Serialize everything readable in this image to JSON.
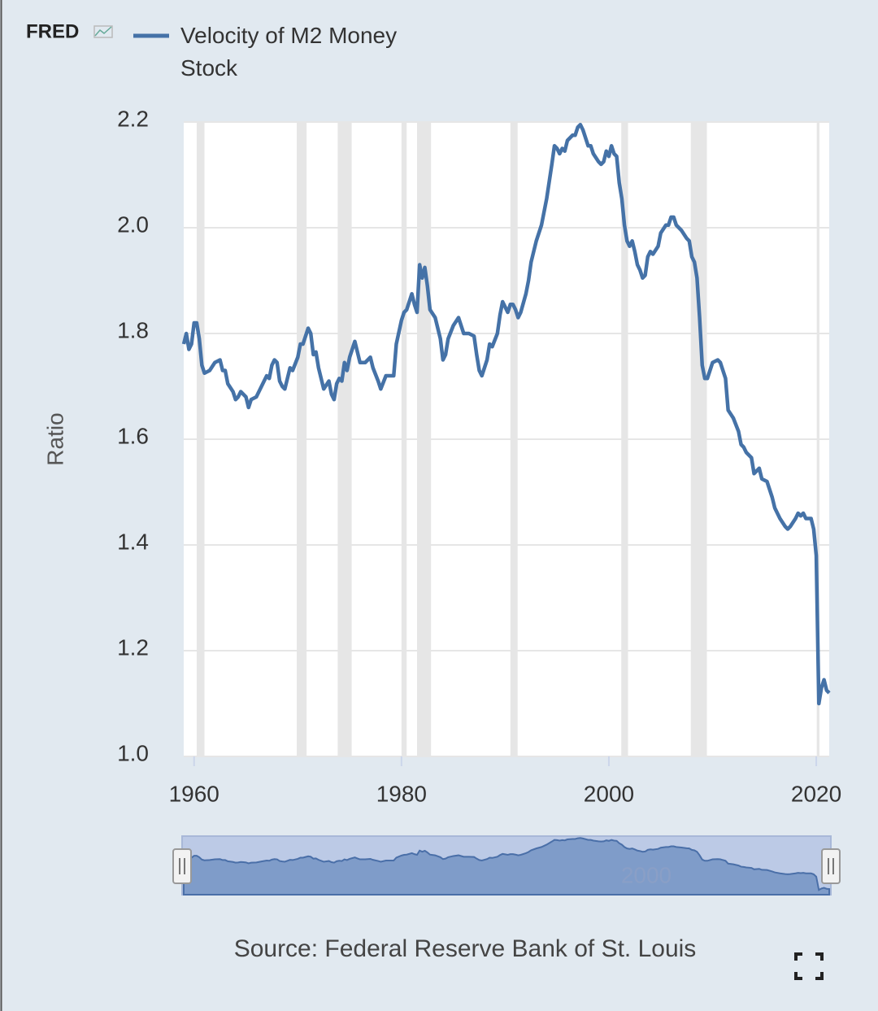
{
  "chart_data": {
    "type": "line",
    "logo": "FRED",
    "y_label": "Ratio",
    "source": "Source: Federal Reserve Bank of St. Louis",
    "navigator_label": "2000",
    "series": [
      {
        "name": "Velocity of M2 Money Stock",
        "color": "#4572a7",
        "values": [
          1.78,
          1.8,
          1.77,
          1.78,
          1.82,
          1.82,
          1.79,
          1.74,
          1.725,
          1.73,
          1.745,
          1.75,
          1.73,
          1.73,
          1.705,
          1.69,
          1.675,
          1.68,
          1.69,
          1.685,
          1.68,
          1.66,
          1.675,
          1.68,
          1.7,
          1.72,
          1.715,
          1.74,
          1.75,
          1.745,
          1.71,
          1.7,
          1.695,
          1.715,
          1.735,
          1.73,
          1.755,
          1.78,
          1.78,
          1.795,
          1.81,
          1.8,
          1.76,
          1.765,
          1.735,
          1.695,
          1.71,
          1.685,
          1.675,
          1.705,
          1.715,
          1.71,
          1.745,
          1.73,
          1.755,
          1.785,
          1.765,
          1.745,
          1.745,
          1.755,
          1.735,
          1.71,
          1.695,
          1.72,
          1.72,
          1.72,
          1.78,
          1.825,
          1.84,
          1.845,
          1.875,
          1.855,
          1.84,
          1.93,
          1.905,
          1.925,
          1.89,
          1.845,
          1.83,
          1.79,
          1.75,
          1.76,
          1.79,
          1.815,
          1.83,
          1.8,
          1.8,
          1.795,
          1.76,
          1.73,
          1.72,
          1.75,
          1.78,
          1.775,
          1.8,
          1.835,
          1.86,
          1.85,
          1.84,
          1.855,
          1.855,
          1.845,
          1.83,
          1.84,
          1.875,
          1.9,
          1.935,
          1.975,
          2.005,
          2.055,
          2.12,
          2.155,
          2.15,
          2.14,
          2.15,
          2.145,
          2.165,
          2.175,
          2.175,
          2.19,
          2.195,
          2.185,
          2.155,
          2.155,
          2.14,
          2.125,
          2.12,
          2.125,
          2.145,
          2.135,
          2.155,
          2.14,
          2.135,
          2.085,
          2.055,
          2.005,
          1.975,
          1.965,
          1.975,
          1.955,
          1.93,
          1.92,
          1.905,
          1.91,
          1.945,
          1.955,
          1.95,
          1.965,
          1.99,
          2.005,
          2.005,
          2.02,
          2.02,
          2.005,
          1.995,
          1.98,
          1.975,
          1.945,
          1.935,
          1.905,
          1.83,
          1.74,
          1.715,
          1.715,
          1.73,
          1.745,
          1.75,
          1.745,
          1.715,
          1.655,
          1.64,
          1.615,
          1.59,
          1.585,
          1.575,
          1.565,
          1.535,
          1.545,
          1.525,
          1.52,
          1.49,
          1.47,
          1.45,
          1.435,
          1.43,
          1.435,
          1.45,
          1.46,
          1.455,
          1.46,
          1.45,
          1.45,
          1.43,
          1.38,
          1.1,
          1.13,
          1.145,
          1.125,
          1.12
        ]
      }
    ],
    "x": [
      1959,
      1959.25,
      1959.5,
      1959.75,
      1960,
      1960.25,
      1960.5,
      1960.75,
      1961,
      1961.5,
      1962,
      1962.5,
      1962.75,
      1963,
      1963.25,
      1963.75,
      1964,
      1964.25,
      1964.5,
      1964.75,
      1965,
      1965.25,
      1965.5,
      1966,
      1966.5,
      1967,
      1967.25,
      1967.5,
      1967.75,
      1968,
      1968.25,
      1968.5,
      1968.75,
      1969,
      1969.25,
      1969.5,
      1970,
      1970.25,
      1970.5,
      1970.75,
      1971,
      1971.25,
      1971.5,
      1971.75,
      1972,
      1972.5,
      1973,
      1973.25,
      1973.5,
      1973.75,
      1974,
      1974.25,
      1974.5,
      1974.75,
      1975,
      1975.5,
      1975.75,
      1976,
      1976.5,
      1977,
      1977.25,
      1977.75,
      1978,
      1978.5,
      1979,
      1979.25,
      1979.5,
      1980,
      1980.25,
      1980.5,
      1981,
      1981.25,
      1981.5,
      1981.75,
      1982,
      1982.25,
      1982.5,
      1982.75,
      1983.25,
      1983.75,
      1984,
      1984.25,
      1984.5,
      1985,
      1985.5,
      1986,
      1986.5,
      1987,
      1987.25,
      1987.5,
      1987.75,
      1988.25,
      1988.5,
      1988.75,
      1989.25,
      1989.5,
      1989.75,
      1990,
      1990.25,
      1990.5,
      1990.75,
      1991,
      1991.25,
      1991.5,
      1992,
      1992.25,
      1992.5,
      1993,
      1993.5,
      1994,
      1994.5,
      1994.75,
      1995,
      1995.25,
      1995.5,
      1995.75,
      1996,
      1996.5,
      1996.75,
      1997,
      1997.25,
      1997.5,
      1998,
      1998.25,
      1998.5,
      1999,
      1999.25,
      1999.5,
      1999.75,
      2000,
      2000.25,
      2000.5,
      2000.75,
      2001,
      2001.25,
      2001.5,
      2001.75,
      2002,
      2002.25,
      2002.5,
      2002.75,
      2003,
      2003.25,
      2003.5,
      2003.75,
      2004,
      2004.25,
      2004.75,
      2005,
      2005.5,
      2005.75,
      2006,
      2006.25,
      2006.5,
      2007,
      2007.5,
      2007.75,
      2008,
      2008.25,
      2008.5,
      2008.75,
      2009,
      2009.25,
      2009.5,
      2009.75,
      2010,
      2010.5,
      2010.75,
      2011.25,
      2011.5,
      2012,
      2012.5,
      2012.75,
      2013,
      2013.25,
      2013.75,
      2014,
      2014.5,
      2014.75,
      2015.25,
      2015.75,
      2016,
      2016.5,
      2017,
      2017.25,
      2017.5,
      2018,
      2018.25,
      2018.5,
      2018.75,
      2019,
      2019.5,
      2019.75,
      2020,
      2020.25,
      2020.5,
      2020.75,
      2021,
      2021.25
    ],
    "xlim": [
      1959,
      2021.25
    ],
    "xticks": [
      1960,
      1980,
      2000,
      2020
    ],
    "ylim": [
      1,
      2.2
    ],
    "yticks": [
      {
        "value": 1,
        "label": "1.0"
      },
      1.2,
      1.4,
      1.6,
      1.8,
      {
        "value": 2,
        "label": "2.0"
      },
      2.2
    ],
    "grid": true,
    "recession_color": "#e6e6e6",
    "recessions": [
      {
        "start": 1960.25,
        "end": 1961
      },
      {
        "start": 1969.9,
        "end": 1970.85
      },
      {
        "start": 1973.85,
        "end": 1975.2
      },
      {
        "start": 1980,
        "end": 1980.5
      },
      {
        "start": 1981.5,
        "end": 1982.85
      },
      {
        "start": 1990.5,
        "end": 1991.2
      },
      {
        "start": 2001.2,
        "end": 2001.85
      },
      {
        "start": 2007.9,
        "end": 2009.45
      },
      {
        "start": 2020.05,
        "end": 2020.3
      }
    ]
  }
}
